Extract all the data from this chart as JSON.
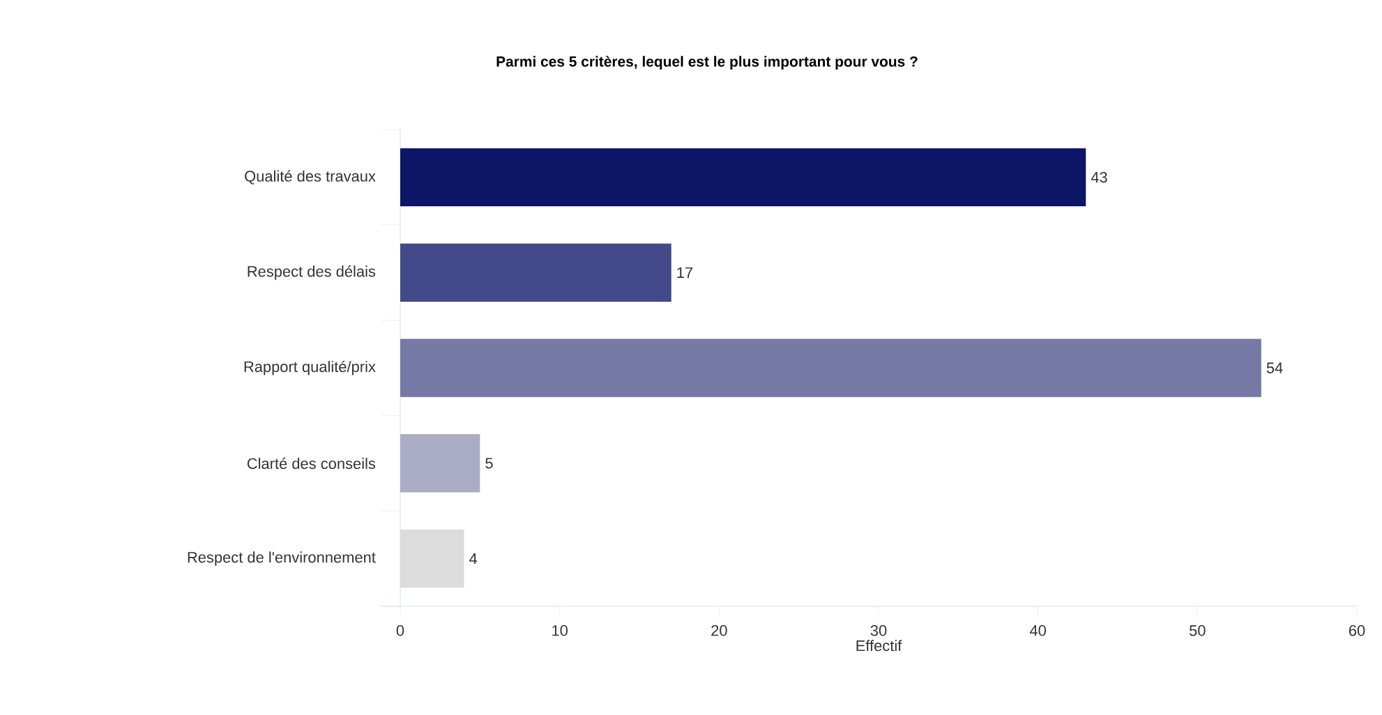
{
  "chart_data": {
    "type": "bar",
    "orientation": "horizontal",
    "title": "Parmi ces 5 critères, lequel est le plus important pour vous ?",
    "xlabel": "Effectif",
    "categories": [
      "Qualité des travaux",
      "Respect des délais",
      "Rapport qualité/prix",
      "Clarté des conseils",
      "Respect de l'environnement"
    ],
    "values": [
      43,
      17,
      54,
      5,
      4
    ],
    "colors": [
      "#0d1566",
      "#434a8a",
      "#7679a6",
      "#abacc6",
      "#dcdcdc"
    ],
    "xlim": [
      0,
      60
    ],
    "xticks": [
      0,
      10,
      20,
      30,
      40,
      50,
      60
    ],
    "data_labels": true,
    "grid": false
  }
}
